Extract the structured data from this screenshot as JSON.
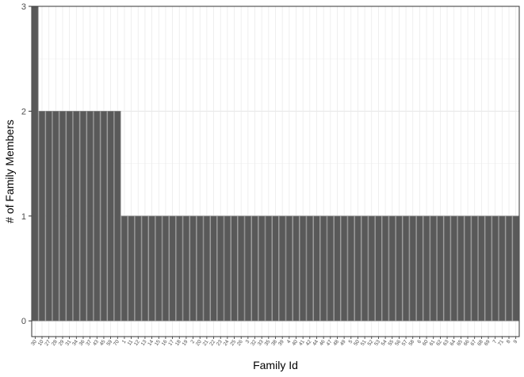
{
  "chart_data": {
    "type": "bar",
    "xlabel": "Family Id",
    "ylabel": "# of Family Members",
    "ylim": [
      0,
      3
    ],
    "yticks": [
      0,
      1,
      2,
      3
    ],
    "grid": true,
    "legend": "none",
    "theme": "bw",
    "bar_color": "#595959",
    "bar_edge_color": "#8c8c8c",
    "categories": [
      "30",
      "10",
      "27",
      "28",
      "29",
      "31",
      "34",
      "36",
      "37",
      "43",
      "45",
      "59",
      "70",
      "1",
      "11",
      "12",
      "13",
      "14",
      "15",
      "16",
      "17",
      "18",
      "19",
      "2",
      "20",
      "21",
      "22",
      "23",
      "24",
      "25",
      "26",
      "3",
      "32",
      "33",
      "35",
      "38",
      "39",
      "4",
      "40",
      "41",
      "42",
      "44",
      "46",
      "47",
      "48",
      "49",
      "5",
      "50",
      "51",
      "52",
      "53",
      "54",
      "55",
      "56",
      "57",
      "58",
      "6",
      "60",
      "61",
      "62",
      "63",
      "64",
      "65",
      "66",
      "67",
      "68",
      "69",
      "7",
      "71",
      "8",
      "9"
    ],
    "values": [
      3,
      2,
      2,
      2,
      2,
      2,
      2,
      2,
      2,
      2,
      2,
      2,
      2,
      1,
      1,
      1,
      1,
      1,
      1,
      1,
      1,
      1,
      1,
      1,
      1,
      1,
      1,
      1,
      1,
      1,
      1,
      1,
      1,
      1,
      1,
      1,
      1,
      1,
      1,
      1,
      1,
      1,
      1,
      1,
      1,
      1,
      1,
      1,
      1,
      1,
      1,
      1,
      1,
      1,
      1,
      1,
      1,
      1,
      1,
      1,
      1,
      1,
      1,
      1,
      1,
      1,
      1,
      1,
      1,
      1,
      1
    ]
  }
}
